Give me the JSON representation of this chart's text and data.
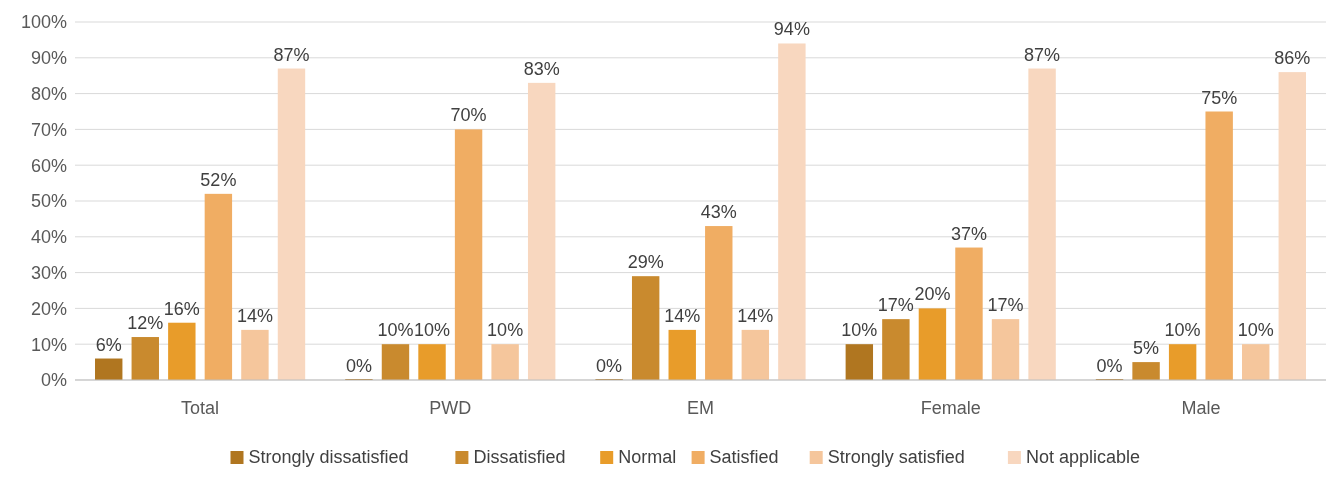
{
  "chart_data": {
    "type": "bar",
    "categories": [
      "Total",
      "PWD",
      "EM",
      "Female",
      "Male"
    ],
    "series": [
      {
        "name": "Strongly dissatisfied",
        "color": "#b07620",
        "values": [
          6,
          0,
          0,
          10,
          0
        ],
        "value_labels": [
          "6%",
          "0%",
          "0%",
          "10%",
          "0%"
        ]
      },
      {
        "name": "Dissatisfied",
        "color": "#c98a2e",
        "values": [
          12,
          10,
          29,
          17,
          5
        ],
        "value_labels": [
          "12%",
          "10%",
          "29%",
          "17%",
          "5%"
        ]
      },
      {
        "name": "Normal",
        "color": "#e89c2a",
        "values": [
          16,
          10,
          14,
          20,
          10
        ],
        "value_labels": [
          "16%",
          "10%",
          "14%",
          "20%",
          "10%"
        ]
      },
      {
        "name": "Satisfied",
        "color": "#f0ad63",
        "values": [
          52,
          70,
          43,
          37,
          75
        ],
        "value_labels": [
          "52%",
          "70%",
          "43%",
          "37%",
          "75%"
        ]
      },
      {
        "name": "Strongly satisfied",
        "color": "#f5c69c",
        "values": [
          14,
          10,
          14,
          17,
          10
        ],
        "value_labels": [
          "14%",
          "10%",
          "14%",
          "17%",
          "10%"
        ]
      },
      {
        "name": "Not applicable",
        "color": "#f8d7bf",
        "values": [
          87,
          83,
          94,
          87,
          86
        ],
        "value_labels": [
          "87%",
          "83%",
          "94%",
          "87%",
          "86%"
        ]
      }
    ],
    "ylim": [
      0,
      100
    ],
    "yticks": [
      {
        "value": 0,
        "label": "0%"
      },
      {
        "value": 10,
        "label": "10%"
      },
      {
        "value": 20,
        "label": "20%"
      },
      {
        "value": 30,
        "label": "30%"
      },
      {
        "value": 40,
        "label": "40%"
      },
      {
        "value": 50,
        "label": "50%"
      },
      {
        "value": 60,
        "label": "60%"
      },
      {
        "value": 70,
        "label": "70%"
      },
      {
        "value": 80,
        "label": "80%"
      },
      {
        "value": 90,
        "label": "90%"
      },
      {
        "value": 100,
        "label": "100%"
      }
    ],
    "grid": "y",
    "legend": "bottom"
  }
}
